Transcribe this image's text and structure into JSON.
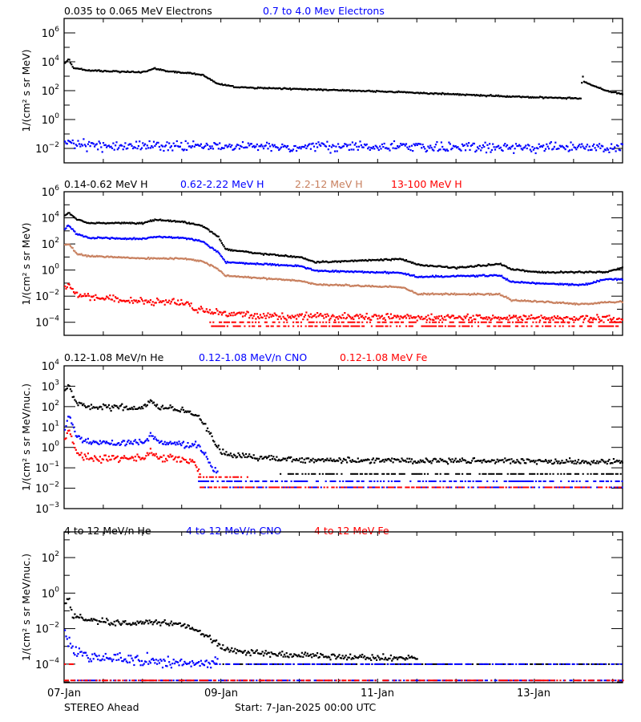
{
  "xlim": [
    "2025-01-07T00:00",
    "2025-01-14T03:00"
  ],
  "x_tick_labels": [
    "07-Jan",
    "09-Jan",
    "11-Jan",
    "13-Jan"
  ],
  "footer": {
    "spacecraft": "STEREO Ahead",
    "start": "Start:  7-Jan-2025 00:00 UTC"
  },
  "colors": {
    "black": "#000000",
    "blue": "#0000ff",
    "brown": "#c8805f",
    "red": "#ff0000"
  },
  "chart_data": [
    {
      "type": "scatter",
      "ylabel": "1/(cm² s sr MeV)",
      "yscale": "log",
      "ylim": [
        0.001,
        10000000
      ],
      "ytick_exponents": [
        6,
        4,
        2,
        0,
        -2
      ],
      "series": [
        {
          "name": "0.035 to 0.065 MeV Electrons",
          "color": "#000000",
          "points": [
            [
              "2025-01-07T00:00",
              8000
            ],
            [
              "2025-01-07T01:12",
              15000
            ],
            [
              "2025-01-07T02:24",
              4000
            ],
            [
              "2025-01-07T07:12",
              2500
            ],
            [
              "2025-01-07T19:12",
              2000
            ],
            [
              "2025-01-08T00:00",
              2000
            ],
            [
              "2025-01-08T03:36",
              3500
            ],
            [
              "2025-01-08T07:12",
              2200
            ],
            [
              "2025-01-08T12:00",
              1800
            ],
            [
              "2025-01-08T18:00",
              1300
            ],
            [
              "2025-01-08T22:48",
              300
            ],
            [
              "2025-01-09T04:48",
              170
            ],
            [
              "2025-01-10T00:00",
              130
            ],
            [
              "2025-01-11T07:12",
              80
            ],
            [
              "2025-01-12T00:00",
              55
            ],
            [
              "2025-01-13T00:00",
              35
            ],
            [
              "2025-01-13T14:00",
              30
            ],
            [
              "2025-01-13T14:24",
              1500
            ],
            [
              "2025-01-13T15:00",
              400
            ],
            [
              "2025-01-13T21:36",
              100
            ],
            [
              "2025-01-14T03:00",
              55
            ]
          ],
          "floor_levels": []
        },
        {
          "name": "0.7 to 4.0 Mev Electrons",
          "color": "#0000ff",
          "points": [
            [
              "2025-01-07T00:00",
              0.025
            ],
            [
              "2025-01-07T12:00",
              0.015
            ],
            [
              "2025-01-14T03:00",
              0.011
            ]
          ],
          "floor_levels": []
        }
      ]
    },
    {
      "type": "scatter",
      "ylabel": "1/(cm² s sr MeV)",
      "yscale": "log",
      "ylim": [
        1e-05,
        1000000
      ],
      "ytick_exponents": [
        6,
        4,
        2,
        0,
        -2,
        -4
      ],
      "series": [
        {
          "name": "0.14-0.62 MeV H",
          "color": "#000000",
          "points": [
            [
              "2025-01-07T00:00",
              15000
            ],
            [
              "2025-01-07T01:12",
              25000
            ],
            [
              "2025-01-07T03:36",
              8000
            ],
            [
              "2025-01-07T07:12",
              4000
            ],
            [
              "2025-01-08T00:00",
              4000
            ],
            [
              "2025-01-08T03:36",
              7000
            ],
            [
              "2025-01-08T12:00",
              5000
            ],
            [
              "2025-01-08T18:00",
              2500
            ],
            [
              "2025-01-08T22:48",
              400
            ],
            [
              "2025-01-09T01:12",
              40
            ],
            [
              "2025-01-09T12:00",
              18
            ],
            [
              "2025-01-10T00:00",
              10
            ],
            [
              "2025-01-10T04:48",
              4
            ],
            [
              "2025-01-11T07:12",
              7
            ],
            [
              "2025-01-11T12:00",
              2.5
            ],
            [
              "2025-01-12T00:00",
              1.5
            ],
            [
              "2025-01-12T13:12",
              3
            ],
            [
              "2025-01-12T16:48",
              1.2
            ],
            [
              "2025-01-13T00:00",
              0.7
            ],
            [
              "2025-01-13T21:36",
              0.7
            ],
            [
              "2025-01-14T03:00",
              1.6
            ]
          ],
          "floor_levels": []
        },
        {
          "name": "0.62-2.22 MeV H",
          "color": "#0000ff",
          "points": [
            [
              "2025-01-07T00:00",
              1500
            ],
            [
              "2025-01-07T01:12",
              2500
            ],
            [
              "2025-01-07T03:36",
              600
            ],
            [
              "2025-01-07T07:12",
              300
            ],
            [
              "2025-01-08T00:00",
              250
            ],
            [
              "2025-01-08T03:36",
              350
            ],
            [
              "2025-01-08T12:00",
              300
            ],
            [
              "2025-01-08T18:00",
              160
            ],
            [
              "2025-01-08T22:48",
              25
            ],
            [
              "2025-01-09T01:12",
              4
            ],
            [
              "2025-01-09T12:00",
              3
            ],
            [
              "2025-01-10T00:00",
              2
            ],
            [
              "2025-01-10T04:48",
              0.9
            ],
            [
              "2025-01-11T07:12",
              0.6
            ],
            [
              "2025-01-11T12:00",
              0.3
            ],
            [
              "2025-01-12T13:12",
              0.4
            ],
            [
              "2025-01-12T16:48",
              0.12
            ],
            [
              "2025-01-13T14:24",
              0.07
            ],
            [
              "2025-01-13T21:36",
              0.2
            ],
            [
              "2025-01-14T03:00",
              0.2
            ]
          ],
          "floor_levels": []
        },
        {
          "name": "2.2-12 MeV H",
          "color": "#c8805f",
          "points": [
            [
              "2025-01-07T00:00",
              80
            ],
            [
              "2025-01-07T01:12",
              100
            ],
            [
              "2025-01-07T03:36",
              18
            ],
            [
              "2025-01-07T07:12",
              12
            ],
            [
              "2025-01-08T00:00",
              8
            ],
            [
              "2025-01-08T12:00",
              8
            ],
            [
              "2025-01-08T18:00",
              5
            ],
            [
              "2025-01-08T22:48",
              1.2
            ],
            [
              "2025-01-09T01:12",
              0.35
            ],
            [
              "2025-01-09T12:00",
              0.25
            ],
            [
              "2025-01-10T00:00",
              0.15
            ],
            [
              "2025-01-10T04:48",
              0.08
            ],
            [
              "2025-01-11T07:12",
              0.05
            ],
            [
              "2025-01-11T12:00",
              0.015
            ],
            [
              "2025-01-12T13:12",
              0.014
            ],
            [
              "2025-01-12T16:48",
              0.005
            ],
            [
              "2025-01-13T14:24",
              0.0025
            ],
            [
              "2025-01-14T03:00",
              0.004
            ]
          ],
          "floor_levels": []
        },
        {
          "name": "13-100 MeV H",
          "color": "#ff0000",
          "points": [
            [
              "2025-01-07T00:00",
              0.05
            ],
            [
              "2025-01-07T01:12",
              0.08
            ],
            [
              "2025-01-07T03:36",
              0.012
            ],
            [
              "2025-01-07T12:00",
              0.007
            ],
            [
              "2025-01-08T00:00",
              0.004
            ],
            [
              "2025-01-08T14:24",
              0.003
            ],
            [
              "2025-01-08T15:00",
              0.0009
            ],
            [
              "2025-01-09T00:00",
              0.0005
            ],
            [
              "2025-01-09T12:00",
              0.0003
            ],
            [
              "2025-01-14T03:00",
              0.0002
            ]
          ],
          "floor_levels": [
            {
              "value": 0.0001,
              "from": "2025-01-08T20:00",
              "to": "2025-01-14T03:00"
            },
            {
              "value": 5e-05,
              "from": "2025-01-08T20:00",
              "to": "2025-01-14T03:00"
            }
          ]
        }
      ]
    },
    {
      "type": "scatter",
      "ylabel": "1/(cm² s sr MeV/nuc.)",
      "yscale": "log",
      "ylim": [
        0.001,
        10000
      ],
      "ytick_exponents": [
        4,
        3,
        2,
        1,
        0,
        -1,
        -2,
        -3
      ],
      "series": [
        {
          "name": "0.12-1.08 MeV/n He",
          "color": "#000000",
          "points": [
            [
              "2025-01-07T00:00",
              500
            ],
            [
              "2025-01-07T01:12",
              1000
            ],
            [
              "2025-01-07T03:36",
              150
            ],
            [
              "2025-01-07T07:12",
              100
            ],
            [
              "2025-01-08T00:00",
              90
            ],
            [
              "2025-01-08T02:24",
              180
            ],
            [
              "2025-01-08T04:48",
              90
            ],
            [
              "2025-01-08T12:00",
              70
            ],
            [
              "2025-01-08T17:00",
              30
            ],
            [
              "2025-01-08T19:12",
              10
            ],
            [
              "2025-01-08T21:36",
              2
            ],
            [
              "2025-01-09T00:00",
              0.6
            ],
            [
              "2025-01-09T04:00",
              0.4
            ],
            [
              "2025-01-10T00:00",
              0.25
            ],
            [
              "2025-01-14T03:00",
              0.2
            ]
          ],
          "floor_levels": [
            {
              "value": 0.05,
              "from": "2025-01-09T18:00",
              "to": "2025-01-14T03:00"
            }
          ]
        },
        {
          "name": "0.12-1.08 MeV/n CNO",
          "color": "#0000ff",
          "points": [
            [
              "2025-01-07T00:00",
              10
            ],
            [
              "2025-01-07T01:12",
              40
            ],
            [
              "2025-01-07T03:36",
              3
            ],
            [
              "2025-01-07T07:12",
              1.8
            ],
            [
              "2025-01-08T00:00",
              1.7
            ],
            [
              "2025-01-08T02:24",
              4
            ],
            [
              "2025-01-08T04:48",
              1.8
            ],
            [
              "2025-01-08T12:00",
              1.5
            ],
            [
              "2025-01-08T17:00",
              1.2
            ],
            [
              "2025-01-08T19:12",
              0.3
            ],
            [
              "2025-01-08T21:36",
              0.08
            ],
            [
              "2025-01-08T22:48",
              0.05
            ]
          ],
          "floor_levels": [
            {
              "value": 0.022,
              "from": "2025-01-08T17:00",
              "to": "2025-01-14T03:00"
            },
            {
              "value": 0.011,
              "from": "2025-01-08T17:00",
              "to": "2025-01-14T03:00"
            }
          ]
        },
        {
          "name": "0.12-1.08 MeV Fe",
          "color": "#ff0000",
          "points": [
            [
              "2025-01-07T00:00",
              2.5
            ],
            [
              "2025-01-07T01:12",
              8
            ],
            [
              "2025-01-07T03:36",
              0.6
            ],
            [
              "2025-01-07T07:12",
              0.3
            ],
            [
              "2025-01-08T00:00",
              0.3
            ],
            [
              "2025-01-08T02:24",
              0.6
            ],
            [
              "2025-01-08T04:48",
              0.3
            ],
            [
              "2025-01-08T12:00",
              0.3
            ],
            [
              "2025-01-08T16:00",
              0.15
            ],
            [
              "2025-01-08T17:30",
              0.05
            ]
          ],
          "floor_levels": [
            {
              "value": 0.035,
              "from": "2025-01-08T17:00",
              "to": "2025-01-09T08:00"
            },
            {
              "value": 0.011,
              "from": "2025-01-08T17:00",
              "to": "2025-01-14T03:00"
            }
          ]
        }
      ]
    },
    {
      "type": "scatter",
      "ylabel": "1/(cm² s sr MeV/nuc.)",
      "yscale": "log",
      "ylim": [
        9e-06,
        2800
      ],
      "ytick_exponents": [
        2,
        0,
        -2,
        -4
      ],
      "series": [
        {
          "name": "4 to 12 MeV/n He",
          "color": "#000000",
          "points": [
            [
              "2025-01-07T00:00",
              0.3
            ],
            [
              "2025-01-07T01:12",
              0.5
            ],
            [
              "2025-01-07T02:24",
              0.05
            ],
            [
              "2025-01-07T07:12",
              0.03
            ],
            [
              "2025-01-07T19:12",
              0.02
            ],
            [
              "2025-01-08T04:48",
              0.025
            ],
            [
              "2025-01-08T12:00",
              0.015
            ],
            [
              "2025-01-08T18:00",
              0.006
            ],
            [
              "2025-01-08T21:36",
              0.002
            ],
            [
              "2025-01-09T00:00",
              0.0008
            ],
            [
              "2025-01-09T06:00",
              0.0005
            ],
            [
              "2025-01-10T00:00",
              0.0003
            ],
            [
              "2025-01-11T12:00",
              0.0002
            ]
          ],
          "floor_levels": [
            {
              "value": 0.0001,
              "from": "2025-01-09T00:00",
              "to": "2025-01-14T03:00"
            }
          ]
        },
        {
          "name": "4 to 12 MeV/n CNO",
          "color": "#0000ff",
          "points": [
            [
              "2025-01-07T00:00",
              0.005
            ],
            [
              "2025-01-07T02:24",
              0.0006
            ],
            [
              "2025-01-07T07:12",
              0.0003
            ],
            [
              "2025-01-08T00:00",
              0.00015
            ],
            [
              "2025-01-08T22:48",
              0.00012
            ]
          ],
          "floor_levels": [
            {
              "value": 0.0001,
              "from": "2025-01-08T22:00",
              "to": "2025-01-14T03:00"
            },
            {
              "value": 1.2e-05,
              "from": "2025-01-07T03:00",
              "to": "2025-01-14T03:00"
            }
          ]
        },
        {
          "name": "4 to 12 MeV Fe",
          "color": "#ff0000",
          "points": [],
          "floor_levels": [
            {
              "value": 0.0001,
              "from": "2025-01-07T00:00",
              "to": "2025-01-07T03:00"
            },
            {
              "value": 1.2e-05,
              "from": "2025-01-07T00:00",
              "to": "2025-01-14T03:00"
            }
          ]
        }
      ]
    }
  ]
}
